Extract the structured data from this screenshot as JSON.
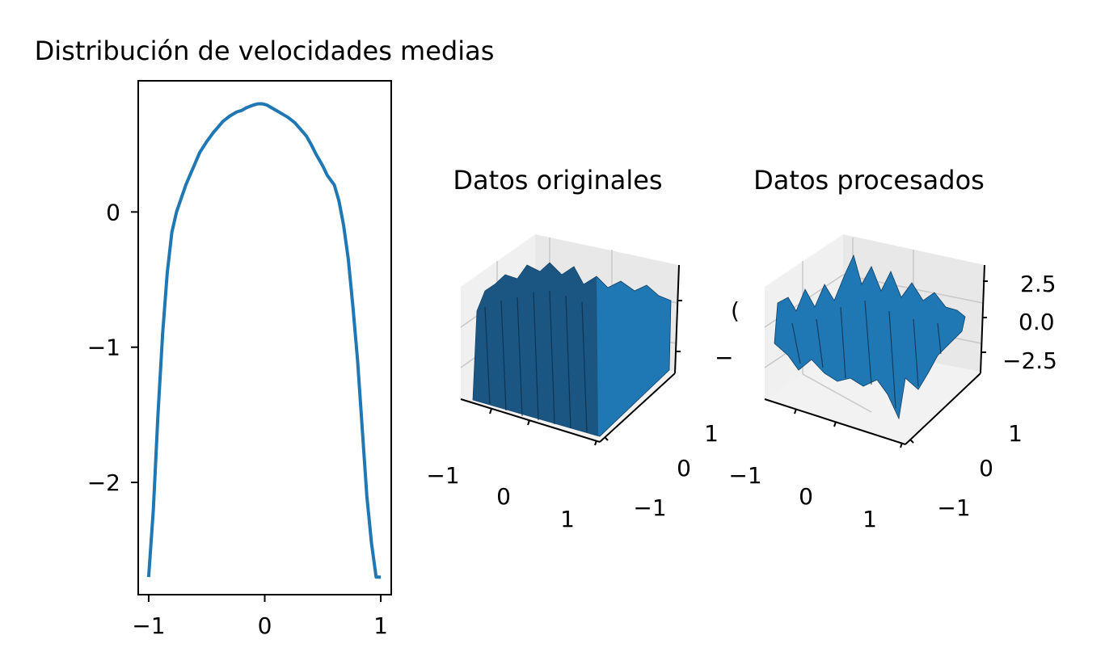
{
  "chart_data": [
    {
      "type": "line",
      "title": "Distribución de velocidades medias",
      "xlabel": "",
      "ylabel": "",
      "xlim": [
        -1.09,
        1.09
      ],
      "ylim": [
        -2.83,
        0.97
      ],
      "x_ticks": [
        -1,
        0,
        1
      ],
      "x_tick_labels": [
        "−1",
        "0",
        "1"
      ],
      "y_ticks": [
        -2,
        -1,
        0
      ],
      "y_tick_labels": [
        "−2",
        "−1",
        "0"
      ],
      "grid": false,
      "series": [
        {
          "color": "#1f77b4",
          "x": [
            -1.0,
            -0.96,
            -0.92,
            -0.88,
            -0.84,
            -0.8,
            -0.76,
            -0.72,
            -0.68,
            -0.64,
            -0.6,
            -0.56,
            -0.5,
            -0.44,
            -0.4,
            -0.36,
            -0.3,
            -0.24,
            -0.2,
            -0.16,
            -0.1,
            -0.06,
            -0.02,
            0.02,
            0.06,
            0.1,
            0.16,
            0.2,
            0.26,
            0.3,
            0.36,
            0.4,
            0.44,
            0.5,
            0.54,
            0.6,
            0.64,
            0.68,
            0.72,
            0.76,
            0.8,
            0.84,
            0.88,
            0.92,
            0.96,
            1.0
          ],
          "y": [
            -2.7,
            -2.2,
            -1.5,
            -0.9,
            -0.45,
            -0.15,
            0.0,
            0.1,
            0.2,
            0.28,
            0.36,
            0.44,
            0.52,
            0.59,
            0.63,
            0.67,
            0.71,
            0.74,
            0.75,
            0.77,
            0.79,
            0.8,
            0.8,
            0.79,
            0.77,
            0.75,
            0.72,
            0.7,
            0.66,
            0.62,
            0.56,
            0.5,
            0.43,
            0.34,
            0.27,
            0.2,
            0.08,
            -0.1,
            -0.35,
            -0.7,
            -1.1,
            -1.6,
            -2.1,
            -2.45,
            -2.7,
            -2.7
          ]
        }
      ]
    },
    {
      "type": "surface",
      "title": "Datos originales",
      "x_tick_labels": [
        "−1",
        "0",
        "1"
      ],
      "y_tick_labels": [
        "−1",
        "0",
        "1"
      ],
      "z_tick_labels": [],
      "color": "#1f77b4"
    },
    {
      "type": "surface",
      "title": "Datos procesados",
      "x_tick_labels": [
        "−1",
        "0",
        "1"
      ],
      "y_tick_labels": [
        "−1",
        "0",
        "1"
      ],
      "z_tick_labels": [
        "2.5",
        "0.0",
        "−2.5"
      ],
      "color": "#1f77b4"
    }
  ]
}
